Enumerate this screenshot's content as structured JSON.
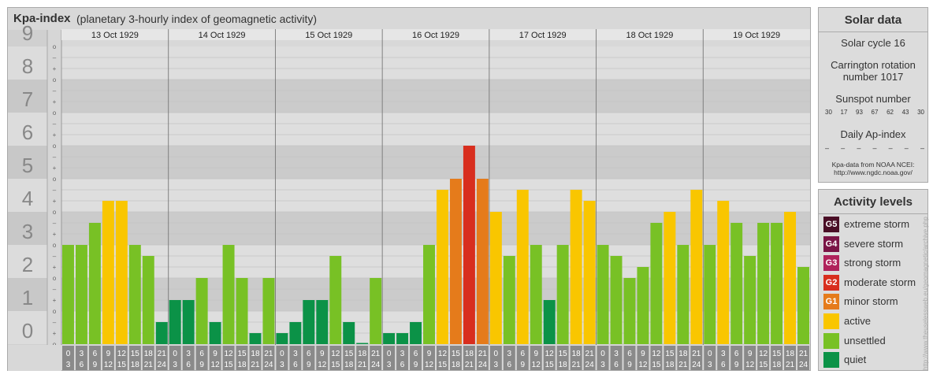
{
  "header": {
    "title": "Kpa-index",
    "subtitle": "(planetary 3-hourly index of geomagnetic activity)"
  },
  "chart_data": {
    "type": "bar",
    "title": "Kpa-index",
    "subtitle": "(planetary 3-hourly index of geomagnetic activity)",
    "y_ticks": [
      "0",
      "1",
      "2",
      "3",
      "4",
      "5",
      "6",
      "7",
      "8",
      "9"
    ],
    "minor_ticks": [
      "o",
      "+",
      "–"
    ],
    "ylim": [
      0,
      9
    ],
    "days": [
      "13 Oct 1929",
      "14 Oct 1929",
      "15 Oct 1929",
      "16 Oct 1929",
      "17 Oct 1929",
      "18 Oct 1929",
      "19 Oct 1929"
    ],
    "hour_starts": [
      "0",
      "3",
      "6",
      "9",
      "12",
      "15",
      "18",
      "21"
    ],
    "hour_ends": [
      "3",
      "6",
      "9",
      "12",
      "15",
      "18",
      "21",
      "24"
    ],
    "values": [
      [
        3.0,
        3.0,
        3.667,
        4.333,
        4.333,
        3.0,
        2.667,
        0.667
      ],
      [
        1.333,
        1.333,
        2.0,
        0.667,
        3.0,
        2.0,
        0.333,
        2.0
      ],
      [
        0.333,
        0.667,
        1.333,
        1.333,
        2.667,
        0.667,
        0.0,
        2.0
      ],
      [
        0.333,
        0.333,
        0.667,
        3.0,
        4.667,
        5.0,
        6.0,
        5.0
      ],
      [
        4.0,
        2.667,
        4.667,
        3.0,
        1.333,
        3.0,
        4.667,
        4.333
      ],
      [
        3.0,
        2.667,
        2.0,
        2.333,
        3.667,
        4.0,
        3.0,
        4.667
      ],
      [
        3.0,
        4.333,
        3.667,
        2.667,
        3.667,
        3.667,
        4.0,
        2.333
      ]
    ],
    "level_colors": {
      "quiet": "#0b9247",
      "unsettled": "#78c125",
      "active": "#f9c600",
      "minor": "#e57b1b",
      "moderate": "#d82e1e",
      "strong": "#b0225b",
      "severe": "#7a1446",
      "extreme": "#4a0e26"
    }
  },
  "solar": {
    "title": "Solar data",
    "cycle": "Solar cycle 16",
    "carrington_1": "Carrington rotation",
    "carrington_2": "number 1017",
    "sunspot_title": "Sunspot number",
    "sunspots": [
      "30",
      "17",
      "93",
      "67",
      "62",
      "43",
      "30"
    ],
    "ap_title": "Daily Ap-index",
    "ap": [
      "–",
      "–",
      "–",
      "–",
      "–",
      "–",
      "–"
    ],
    "source_1": "Kpa-data from NOAA NCEI:",
    "source_2": "http://www.ngdc.noaa.gov/"
  },
  "activity": {
    "title": "Activity levels",
    "levels": [
      {
        "badge": "G5",
        "label": "extreme storm",
        "color": "#4a0e26"
      },
      {
        "badge": "G4",
        "label": "severe storm",
        "color": "#7a1446"
      },
      {
        "badge": "G3",
        "label": "strong storm",
        "color": "#b0225b"
      },
      {
        "badge": "G2",
        "label": "moderate storm",
        "color": "#d82e1e"
      },
      {
        "badge": "G1",
        "label": "minor storm",
        "color": "#e57b1b"
      },
      {
        "badge": "",
        "label": "active",
        "color": "#f9c600"
      },
      {
        "badge": "",
        "label": "unsettled",
        "color": "#78c125"
      },
      {
        "badge": "",
        "label": "quiet",
        "color": "#0b9247"
      }
    ]
  },
  "credit": "http://www.theuselessweb.eu/geomagnetic/archive.php"
}
